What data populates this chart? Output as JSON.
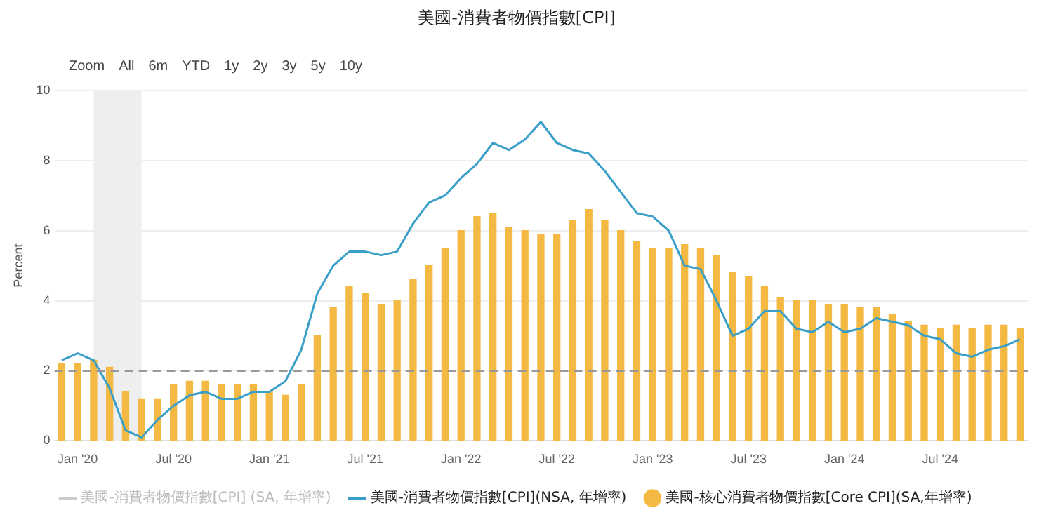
{
  "chart_data": {
    "type": "bar",
    "title": "美國-消費者物價指數[CPI]",
    "ylabel": "Percent",
    "annotations": [
      "Zoom",
      "All",
      "6m",
      "YTD",
      "1y",
      "2y",
      "3y",
      "5y",
      "10y"
    ],
    "x": [
      "2019-12",
      "2020-01",
      "2020-02",
      "2020-03",
      "2020-04",
      "2020-05",
      "2020-06",
      "2020-07",
      "2020-08",
      "2020-09",
      "2020-10",
      "2020-11",
      "2020-12",
      "2021-01",
      "2021-02",
      "2021-03",
      "2021-04",
      "2021-05",
      "2021-06",
      "2021-07",
      "2021-08",
      "2021-09",
      "2021-10",
      "2021-11",
      "2021-12",
      "2022-01",
      "2022-02",
      "2022-03",
      "2022-04",
      "2022-05",
      "2022-06",
      "2022-07",
      "2022-08",
      "2022-09",
      "2022-10",
      "2022-11",
      "2022-12",
      "2023-01",
      "2023-02",
      "2023-03",
      "2023-04",
      "2023-05",
      "2023-06",
      "2023-07",
      "2023-08",
      "2023-09",
      "2023-10",
      "2023-11",
      "2023-12",
      "2024-01",
      "2024-02",
      "2024-03",
      "2024-04",
      "2024-05",
      "2024-06",
      "2024-07",
      "2024-08",
      "2024-09",
      "2024-10",
      "2024-11",
      "2024-12"
    ],
    "series": [
      {
        "name": "美國-消費者物價指數[CPI] (SA, 年增率)",
        "type": "line",
        "color": "#cccccc",
        "values": [
          null,
          null,
          null,
          null,
          null,
          null,
          null,
          null,
          null,
          null,
          null,
          null,
          null,
          null,
          null,
          null,
          null,
          null,
          null,
          null,
          null,
          null,
          null,
          null,
          null,
          null,
          null,
          null,
          null,
          null,
          null,
          null,
          null,
          null,
          null,
          null,
          null,
          null,
          null,
          null,
          null,
          null,
          null,
          null,
          null,
          null,
          null,
          null,
          null,
          null,
          null,
          null,
          null,
          null,
          null,
          null,
          null,
          null,
          null,
          null,
          null
        ]
      },
      {
        "name": "美國-消費者物價指數[CPI](NSA, 年增率)",
        "type": "line",
        "color": "#3a9fc8",
        "values": [
          2.3,
          2.5,
          2.3,
          1.5,
          0.3,
          0.1,
          0.6,
          1.0,
          1.3,
          1.4,
          1.2,
          1.2,
          1.4,
          1.4,
          1.7,
          2.6,
          4.2,
          5.0,
          5.4,
          5.4,
          5.3,
          5.4,
          6.2,
          6.8,
          7.0,
          7.5,
          7.9,
          8.5,
          8.3,
          8.6,
          9.1,
          8.5,
          8.3,
          8.2,
          7.7,
          7.1,
          6.5,
          6.4,
          6.0,
          5.0,
          4.9,
          4.0,
          3.0,
          3.2,
          3.7,
          3.7,
          3.2,
          3.1,
          3.4,
          3.1,
          3.2,
          3.5,
          3.4,
          3.3,
          3.0,
          2.9,
          2.5,
          2.4,
          2.6,
          2.7,
          2.9
        ]
      },
      {
        "name": "美國-核心消費者物價指數[Core CPI](SA,年增率)",
        "color": "#f4b942",
        "values": [
          2.2,
          2.2,
          2.3,
          2.1,
          1.4,
          1.2,
          1.2,
          1.6,
          1.7,
          1.7,
          1.6,
          1.6,
          1.6,
          1.4,
          1.3,
          1.6,
          3.0,
          3.8,
          4.4,
          4.2,
          3.9,
          4.0,
          4.6,
          5.0,
          5.5,
          6.0,
          6.4,
          6.5,
          6.1,
          6.0,
          5.9,
          5.9,
          6.3,
          6.6,
          6.3,
          6.0,
          5.7,
          5.5,
          5.5,
          5.6,
          5.5,
          5.3,
          4.8,
          4.7,
          4.4,
          4.1,
          4.0,
          4.0,
          3.9,
          3.9,
          3.8,
          3.8,
          3.6,
          3.4,
          3.3,
          3.2,
          3.3,
          3.2,
          3.3,
          3.3,
          3.2
        ]
      }
    ],
    "xlim": [
      "2019-11-18",
      "2024-12-16"
    ],
    "xticks": [
      {
        "value": "2020-01",
        "label": "Jan '20"
      },
      {
        "value": "2020-07",
        "label": "Jul '20"
      },
      {
        "value": "2021-01",
        "label": "Jan '21"
      },
      {
        "value": "2021-07",
        "label": "Jul '21"
      },
      {
        "value": "2022-01",
        "label": "Jan '22"
      },
      {
        "value": "2022-07",
        "label": "Jul '22"
      },
      {
        "value": "2023-01",
        "label": "Jan '23"
      },
      {
        "value": "2023-07",
        "label": "Jul '23"
      },
      {
        "value": "2024-01",
        "label": "Jan '24"
      },
      {
        "value": "2024-07",
        "label": "Jul '24"
      }
    ],
    "ylim": [
      0,
      10
    ],
    "yticks": [
      0,
      2,
      4,
      6,
      8,
      10
    ],
    "ref_lines": [
      {
        "axis": "y",
        "value": 2,
        "color": "#999999",
        "line_style": "dashed"
      }
    ],
    "bands": [
      {
        "axis": "x",
        "from": "2020-02",
        "to": "2020-05",
        "color": "#eeeeee"
      }
    ],
    "grid": "y",
    "legend": "bottom",
    "marker": "none"
  }
}
